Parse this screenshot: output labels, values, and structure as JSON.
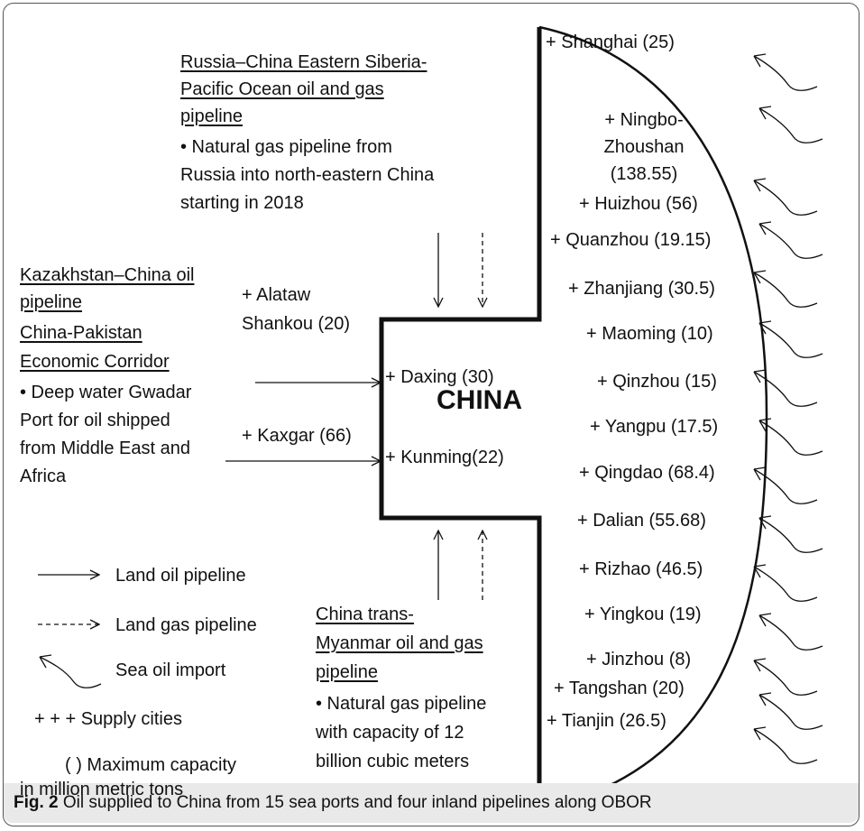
{
  "center_label": "CHINA",
  "pipelines": {
    "russia": {
      "title_lines": [
        "Russia–China Eastern Siberia-",
        "Pacific Ocean oil and gas",
        "pipeline"
      ],
      "bullet": "•  Natural gas pipeline from\nRussia into north-eastern China\nstarting in 2018"
    },
    "kazakhstan": {
      "title_lines": [
        "Kazakhstan–China oil",
        "pipeline"
      ]
    },
    "pakistan": {
      "title_lines": [
        "China-Pakistan",
        "Economic Corridor"
      ],
      "bullet": "• Deep water Gwadar\nPort for oil shipped\nfrom Middle East and\nAfrica"
    },
    "myanmar": {
      "title_lines": [
        "China trans-",
        "Myanmar oil and gas",
        "pipeline"
      ],
      "bullet": "• Natural gas pipeline\nwith capacity of 12\nbillion cubic meters"
    }
  },
  "inland_cities": {
    "alataw": "+ Alataw\nShankou (20)",
    "kaxgar": "+ Kaxgar (66)",
    "daxing": "+ Daxing (30)",
    "kunming": "+ Kunming(22)"
  },
  "ports": [
    "+ Shanghai (25)",
    "+ Ningbo-\nZhoushan\n(138.55)",
    "+ Huizhou (56)",
    "+ Quanzhou (19.15)",
    "+ Zhanjiang (30.5)",
    "+ Maoming (10)",
    "+ Qinzhou (15)",
    "+ Yangpu (17.5)",
    "+ Qingdao (68.4)",
    "+ Dalian (55.68)",
    "+ Rizhao (46.5)",
    "+ Yingkou (19)",
    "+ Jinzhou (8)",
    "+ Tangshan (20)",
    "+ Tianjin (26.5)"
  ],
  "legend": {
    "land_oil": "Land oil pipeline",
    "land_gas": "Land gas pipeline",
    "sea_oil": "Sea oil import",
    "supply": "+ + + Supply  cities",
    "capacity_line1": "(  )  Maximum capacity",
    "capacity_line2": "in million metric tons"
  },
  "caption": {
    "label": "Fig. 2",
    "text": " Oil supplied to China from 15 sea ports and four inland pipelines along OBOR"
  }
}
